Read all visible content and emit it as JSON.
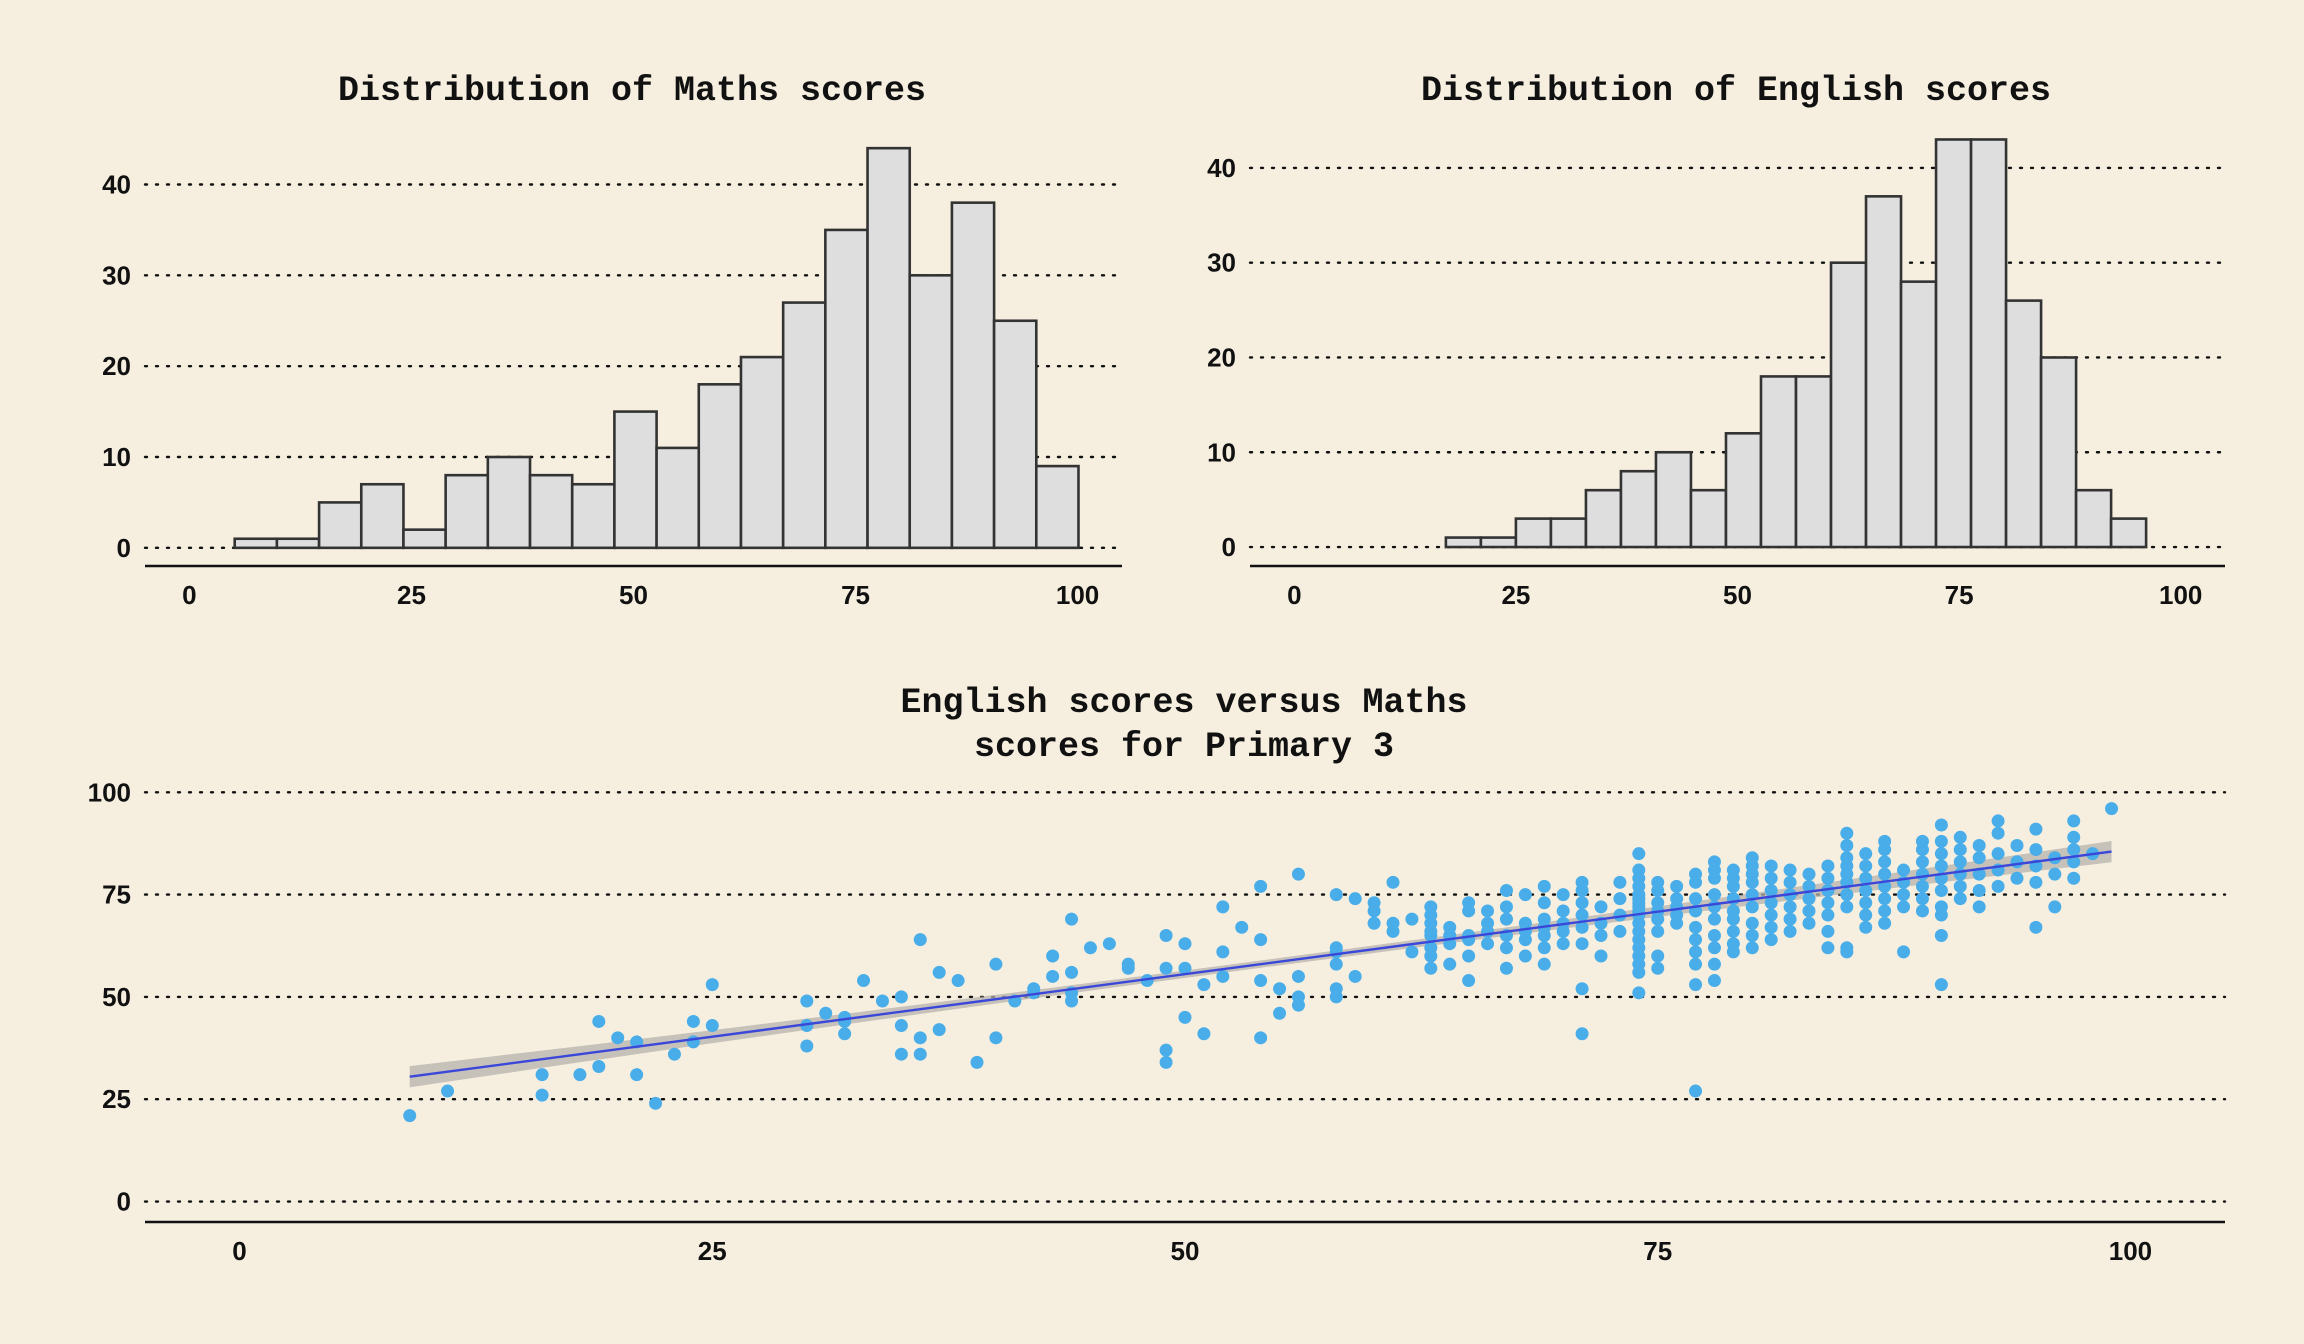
{
  "colors": {
    "background": "#f6efe0",
    "bar_fill": "#dedede",
    "bar_stroke": "#333333",
    "point": "#48ade8",
    "fit_line": "#3b47d8",
    "band": "#b5b1ac"
  },
  "chart_data": [
    {
      "type": "bar",
      "subtype": "histogram",
      "title": "Distribution of Maths scores",
      "xlabel": "",
      "ylabel": "",
      "bin_width": 4.75,
      "bin_start": 5.1,
      "counts": [
        1,
        1,
        5,
        7,
        2,
        8,
        10,
        8,
        7,
        15,
        11,
        18,
        21,
        27,
        35,
        44,
        30,
        38,
        25,
        9
      ],
      "xlim": [
        -5,
        105
      ],
      "ylim": [
        -2,
        46
      ],
      "xticks": [
        "0",
        "25",
        "50",
        "75",
        "100"
      ],
      "yticks": [
        "0",
        "10",
        "20",
        "30",
        "40"
      ],
      "grid": "horizontal dotted"
    },
    {
      "type": "bar",
      "subtype": "histogram",
      "title": "Distribution of English scores",
      "xlabel": "",
      "ylabel": "",
      "bin_width": 3.95,
      "bin_start": 17.1,
      "counts": [
        1,
        1,
        3,
        3,
        6,
        8,
        10,
        6,
        12,
        18,
        18,
        30,
        37,
        28,
        43,
        43,
        26,
        20,
        6,
        3
      ],
      "xlim": [
        -5,
        105
      ],
      "ylim": [
        -2,
        44
      ],
      "xticks": [
        "0",
        "25",
        "50",
        "75",
        "100"
      ],
      "yticks": [
        "0",
        "10",
        "20",
        "30",
        "40"
      ],
      "grid": "horizontal dotted"
    },
    {
      "type": "scatter",
      "title": [
        "English scores versus Maths",
        "scores for Primary 3"
      ],
      "xlabel": "",
      "ylabel": "",
      "xlim": [
        -5,
        105
      ],
      "ylim": [
        -5,
        103
      ],
      "xticks": [
        "0",
        "25",
        "50",
        "75",
        "100"
      ],
      "yticks": [
        "0",
        "25",
        "50",
        "75",
        "100"
      ],
      "grid": "horizontal dotted",
      "fit_line": {
        "x": [
          9,
          99
        ],
        "y": [
          30.5,
          85.5
        ],
        "band_halfwidth_ends": 2.6,
        "band_halfwidth_mid": 0.9
      },
      "points": [
        [
          9,
          21
        ],
        [
          11,
          27
        ],
        [
          16,
          26
        ],
        [
          16,
          31
        ],
        [
          18,
          31
        ],
        [
          19,
          33
        ],
        [
          19,
          44
        ],
        [
          20,
          40
        ],
        [
          21,
          39
        ],
        [
          21,
          31
        ],
        [
          22,
          24
        ],
        [
          23,
          36
        ],
        [
          24,
          39
        ],
        [
          24,
          44
        ],
        [
          25,
          43
        ],
        [
          25,
          53
        ],
        [
          30,
          38
        ],
        [
          30,
          43
        ],
        [
          30,
          49
        ],
        [
          31,
          46
        ],
        [
          32,
          41
        ],
        [
          32,
          44
        ],
        [
          32,
          45
        ],
        [
          33,
          54
        ],
        [
          34,
          49
        ],
        [
          35,
          36
        ],
        [
          35,
          43
        ],
        [
          35,
          50
        ],
        [
          36,
          36
        ],
        [
          36,
          40
        ],
        [
          36,
          64
        ],
        [
          37,
          42
        ],
        [
          37,
          56
        ],
        [
          38,
          54
        ],
        [
          39,
          34
        ],
        [
          40,
          40
        ],
        [
          40,
          58
        ],
        [
          41,
          49
        ],
        [
          42,
          51
        ],
        [
          42,
          52
        ],
        [
          43,
          55
        ],
        [
          43,
          60
        ],
        [
          44,
          49
        ],
        [
          44,
          51
        ],
        [
          44,
          56
        ],
        [
          44,
          69
        ],
        [
          45,
          62
        ],
        [
          46,
          63
        ],
        [
          47,
          57
        ],
        [
          47,
          58
        ],
        [
          48,
          54
        ],
        [
          49,
          34
        ],
        [
          49,
          37
        ],
        [
          49,
          57
        ],
        [
          49,
          65
        ],
        [
          50,
          45
        ],
        [
          50,
          57
        ],
        [
          50,
          63
        ],
        [
          51,
          41
        ],
        [
          51,
          53
        ],
        [
          52,
          55
        ],
        [
          52,
          61
        ],
        [
          52,
          72
        ],
        [
          53,
          67
        ],
        [
          54,
          40
        ],
        [
          54,
          54
        ],
        [
          54,
          64
        ],
        [
          54,
          77
        ],
        [
          55,
          46
        ],
        [
          55,
          52
        ],
        [
          56,
          48
        ],
        [
          56,
          50
        ],
        [
          56,
          55
        ],
        [
          56,
          80
        ],
        [
          58,
          50
        ],
        [
          58,
          52
        ],
        [
          58,
          58
        ],
        [
          58,
          61
        ],
        [
          58,
          62
        ],
        [
          58,
          75
        ],
        [
          59,
          55
        ],
        [
          59,
          74
        ],
        [
          60,
          68
        ],
        [
          60,
          71
        ],
        [
          60,
          73
        ],
        [
          61,
          66
        ],
        [
          61,
          68
        ],
        [
          61,
          78
        ],
        [
          62,
          61
        ],
        [
          62,
          69
        ],
        [
          63,
          57
        ],
        [
          63,
          60
        ],
        [
          63,
          62
        ],
        [
          63,
          65
        ],
        [
          63,
          66
        ],
        [
          63,
          68
        ],
        [
          63,
          70
        ],
        [
          63,
          72
        ],
        [
          64,
          58
        ],
        [
          64,
          63
        ],
        [
          64,
          65
        ],
        [
          64,
          67
        ],
        [
          65,
          54
        ],
        [
          65,
          60
        ],
        [
          65,
          64
        ],
        [
          65,
          65
        ],
        [
          65,
          71
        ],
        [
          65,
          73
        ],
        [
          66,
          63
        ],
        [
          66,
          66
        ],
        [
          66,
          68
        ],
        [
          66,
          71
        ],
        [
          67,
          57
        ],
        [
          67,
          62
        ],
        [
          67,
          65
        ],
        [
          67,
          69
        ],
        [
          67,
          72
        ],
        [
          67,
          76
        ],
        [
          68,
          60
        ],
        [
          68,
          64
        ],
        [
          68,
          66
        ],
        [
          68,
          68
        ],
        [
          68,
          75
        ],
        [
          69,
          58
        ],
        [
          69,
          62
        ],
        [
          69,
          65
        ],
        [
          69,
          67
        ],
        [
          69,
          69
        ],
        [
          69,
          73
        ],
        [
          69,
          77
        ],
        [
          70,
          63
        ],
        [
          70,
          66
        ],
        [
          70,
          68
        ],
        [
          70,
          71
        ],
        [
          70,
          75
        ],
        [
          71,
          41
        ],
        [
          71,
          52
        ],
        [
          71,
          63
        ],
        [
          71,
          67
        ],
        [
          71,
          70
        ],
        [
          71,
          73
        ],
        [
          71,
          76
        ],
        [
          71,
          78
        ],
        [
          72,
          60
        ],
        [
          72,
          65
        ],
        [
          72,
          68
        ],
        [
          72,
          72
        ],
        [
          73,
          66
        ],
        [
          73,
          70
        ],
        [
          73,
          74
        ],
        [
          73,
          78
        ],
        [
          74,
          51
        ],
        [
          74,
          56
        ],
        [
          74,
          58
        ],
        [
          74,
          60
        ],
        [
          74,
          62
        ],
        [
          74,
          64
        ],
        [
          74,
          66
        ],
        [
          74,
          68
        ],
        [
          74,
          70
        ],
        [
          74,
          71
        ],
        [
          74,
          72
        ],
        [
          74,
          73
        ],
        [
          74,
          74
        ],
        [
          74,
          75
        ],
        [
          74,
          77
        ],
        [
          74,
          79
        ],
        [
          74,
          81
        ],
        [
          74,
          85
        ],
        [
          75,
          57
        ],
        [
          75,
          60
        ],
        [
          75,
          66
        ],
        [
          75,
          69
        ],
        [
          75,
          71
        ],
        [
          75,
          73
        ],
        [
          75,
          76
        ],
        [
          75,
          78
        ],
        [
          76,
          68
        ],
        [
          76,
          70
        ],
        [
          76,
          72
        ],
        [
          76,
          74
        ],
        [
          76,
          77
        ],
        [
          77,
          27
        ],
        [
          77,
          53
        ],
        [
          77,
          58
        ],
        [
          77,
          61
        ],
        [
          77,
          64
        ],
        [
          77,
          67
        ],
        [
          77,
          71
        ],
        [
          77,
          74
        ],
        [
          77,
          78
        ],
        [
          77,
          80
        ],
        [
          78,
          54
        ],
        [
          78,
          58
        ],
        [
          78,
          62
        ],
        [
          78,
          65
        ],
        [
          78,
          69
        ],
        [
          78,
          72
        ],
        [
          78,
          75
        ],
        [
          78,
          79
        ],
        [
          78,
          81
        ],
        [
          78,
          83
        ],
        [
          79,
          61
        ],
        [
          79,
          63
        ],
        [
          79,
          66
        ],
        [
          79,
          69
        ],
        [
          79,
          71
        ],
        [
          79,
          74
        ],
        [
          79,
          77
        ],
        [
          79,
          79
        ],
        [
          79,
          81
        ],
        [
          80,
          62
        ],
        [
          80,
          65
        ],
        [
          80,
          68
        ],
        [
          80,
          72
        ],
        [
          80,
          75
        ],
        [
          80,
          78
        ],
        [
          80,
          80
        ],
        [
          80,
          82
        ],
        [
          80,
          84
        ],
        [
          81,
          64
        ],
        [
          81,
          67
        ],
        [
          81,
          70
        ],
        [
          81,
          73
        ],
        [
          81,
          76
        ],
        [
          81,
          79
        ],
        [
          81,
          82
        ],
        [
          82,
          66
        ],
        [
          82,
          69
        ],
        [
          82,
          72
        ],
        [
          82,
          75
        ],
        [
          82,
          78
        ],
        [
          82,
          81
        ],
        [
          83,
          68
        ],
        [
          83,
          71
        ],
        [
          83,
          74
        ],
        [
          83,
          77
        ],
        [
          83,
          80
        ],
        [
          84,
          62
        ],
        [
          84,
          66
        ],
        [
          84,
          70
        ],
        [
          84,
          73
        ],
        [
          84,
          76
        ],
        [
          84,
          79
        ],
        [
          84,
          82
        ],
        [
          85,
          61
        ],
        [
          85,
          62
        ],
        [
          85,
          72
        ],
        [
          85,
          75
        ],
        [
          85,
          78
        ],
        [
          85,
          80
        ],
        [
          85,
          82
        ],
        [
          85,
          84
        ],
        [
          85,
          87
        ],
        [
          85,
          90
        ],
        [
          86,
          67
        ],
        [
          86,
          70
        ],
        [
          86,
          73
        ],
        [
          86,
          76
        ],
        [
          86,
          79
        ],
        [
          86,
          82
        ],
        [
          86,
          85
        ],
        [
          87,
          68
        ],
        [
          87,
          71
        ],
        [
          87,
          74
        ],
        [
          87,
          77
        ],
        [
          87,
          80
        ],
        [
          87,
          83
        ],
        [
          87,
          86
        ],
        [
          87,
          88
        ],
        [
          88,
          61
        ],
        [
          88,
          72
        ],
        [
          88,
          75
        ],
        [
          88,
          78
        ],
        [
          88,
          81
        ],
        [
          89,
          71
        ],
        [
          89,
          74
        ],
        [
          89,
          77
        ],
        [
          89,
          80
        ],
        [
          89,
          83
        ],
        [
          89,
          86
        ],
        [
          89,
          88
        ],
        [
          90,
          53
        ],
        [
          90,
          65
        ],
        [
          90,
          70
        ],
        [
          90,
          72
        ],
        [
          90,
          76
        ],
        [
          90,
          79
        ],
        [
          90,
          82
        ],
        [
          90,
          85
        ],
        [
          90,
          88
        ],
        [
          90,
          92
        ],
        [
          91,
          74
        ],
        [
          91,
          77
        ],
        [
          91,
          80
        ],
        [
          91,
          83
        ],
        [
          91,
          86
        ],
        [
          91,
          89
        ],
        [
          92,
          72
        ],
        [
          92,
          76
        ],
        [
          92,
          80
        ],
        [
          92,
          84
        ],
        [
          92,
          87
        ],
        [
          93,
          77
        ],
        [
          93,
          81
        ],
        [
          93,
          85
        ],
        [
          93,
          90
        ],
        [
          93,
          93
        ],
        [
          94,
          79
        ],
        [
          94,
          83
        ],
        [
          94,
          87
        ],
        [
          95,
          67
        ],
        [
          95,
          78
        ],
        [
          95,
          82
        ],
        [
          95,
          86
        ],
        [
          95,
          91
        ],
        [
          96,
          72
        ],
        [
          96,
          80
        ],
        [
          96,
          84
        ],
        [
          97,
          79
        ],
        [
          97,
          83
        ],
        [
          97,
          86
        ],
        [
          97,
          89
        ],
        [
          97,
          93
        ],
        [
          98,
          85
        ],
        [
          99,
          96
        ]
      ]
    }
  ]
}
